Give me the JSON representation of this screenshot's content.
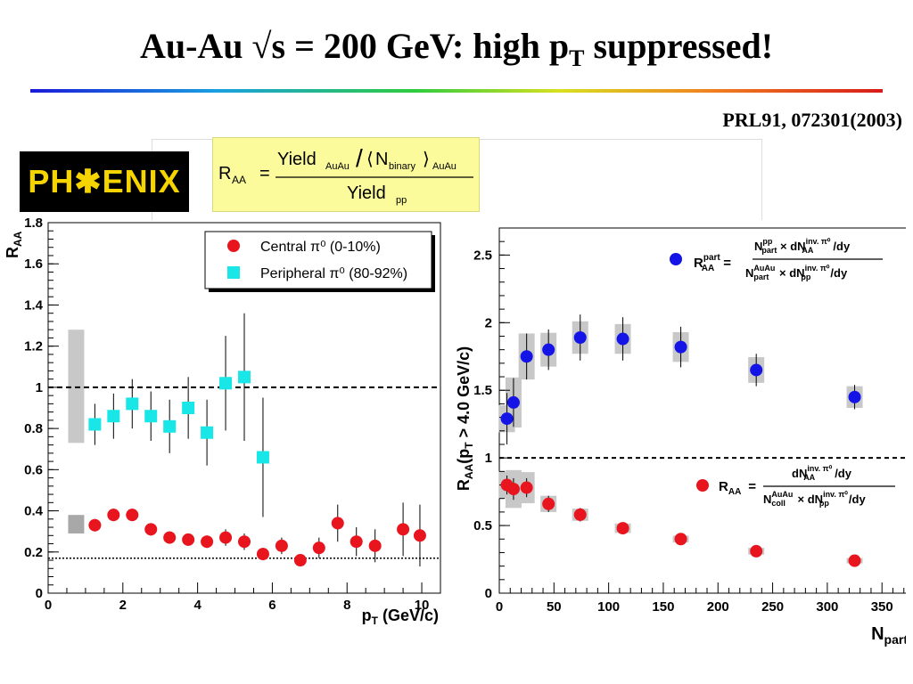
{
  "slide": {
    "title": "Au-Au √s = 200 GeV: high p",
    "title_sub": "T",
    "title_tail": " suppressed!",
    "reference": "PRL91, 072301(2003)",
    "logo_text": "PH✱ENIX",
    "formula": {
      "lhs": "R",
      "lhs_sub": "AA",
      "num_main": "Yield",
      "num_sub": "AuAu",
      "ncoll_main": "N",
      "ncoll_sub": "binary",
      "ncoll_sub2": "AuAu",
      "den_main": "Yield",
      "den_sub": "pp"
    }
  },
  "colors": {
    "central": "#e8141e",
    "peripheral": "#19e6e6",
    "npart_blue": "#1414e6",
    "band": "#c8c8c8"
  },
  "chart_data": [
    {
      "type": "scatter",
      "xlabel": "p",
      "xlabel_sub": "T",
      "xlabel_tail": " (GeV/c)",
      "ylabel": "R",
      "ylabel_sub": "AA",
      "xlim": [
        0,
        10.5
      ],
      "ylim": [
        0,
        1.8
      ],
      "xticks": [
        "0",
        "2",
        "4",
        "6",
        "8",
        "10"
      ],
      "yticks": [
        "0",
        "0.2",
        "0.4",
        "0.6",
        "0.8",
        "1",
        "1.2",
        "1.4",
        "1.6",
        "1.8"
      ],
      "reference_lines": [
        1.0,
        0.17
      ],
      "legend": [
        "Central π⁰ (0-10%)",
        "Peripheral π⁰ (80-92%)"
      ],
      "series": [
        {
          "name": "Central π⁰ (0-10%)",
          "x": [
            1.25,
            1.75,
            2.25,
            2.75,
            3.25,
            3.75,
            4.25,
            4.75,
            5.25,
            5.75,
            6.25,
            6.75,
            7.25,
            7.75,
            8.25,
            8.75,
            9.5,
            9.95
          ],
          "y": [
            0.33,
            0.38,
            0.38,
            0.31,
            0.27,
            0.26,
            0.25,
            0.27,
            0.25,
            0.19,
            0.23,
            0.16,
            0.22,
            0.34,
            0.25,
            0.23,
            0.31,
            0.28
          ],
          "err": [
            0.03,
            0.03,
            0.03,
            0.03,
            0.03,
            0.03,
            0.03,
            0.04,
            0.04,
            0.03,
            0.04,
            0.03,
            0.05,
            0.09,
            0.07,
            0.08,
            0.13,
            0.15
          ]
        },
        {
          "name": "Peripheral π⁰ (80-92%)",
          "x": [
            1.25,
            1.75,
            2.25,
            2.75,
            3.25,
            3.75,
            4.25,
            4.75,
            5.25,
            5.75
          ],
          "y": [
            0.82,
            0.86,
            0.92,
            0.86,
            0.81,
            0.9,
            0.78,
            1.02,
            1.05,
            0.66
          ],
          "err": [
            0.1,
            0.11,
            0.12,
            0.12,
            0.13,
            0.15,
            0.16,
            0.23,
            0.31,
            0.29
          ]
        }
      ],
      "systematic_bands": [
        {
          "x": 0.75,
          "low": 0.73,
          "high": 1.28
        },
        {
          "x": 0.75,
          "low": 0.29,
          "high": 0.38
        }
      ]
    },
    {
      "type": "scatter",
      "xlabel": "N",
      "xlabel_sub": "part",
      "ylabel": "R",
      "ylabel_sub": "AA",
      "ylabel_tail": "(p",
      "ylabel_tail_sub": "T",
      "ylabel_end": " > 4.0 GeV/c)",
      "xlim": [
        0,
        380
      ],
      "ylim": [
        0,
        2.7
      ],
      "xticks": [
        "0",
        "50",
        "100",
        "150",
        "200",
        "250",
        "300",
        "350"
      ],
      "yticks": [
        "0",
        "0.5",
        "1",
        "1.5",
        "2",
        "2.5"
      ],
      "reference_lines": [
        1.0
      ],
      "legend": [
        "R_AA^part",
        "R_AA"
      ],
      "series": [
        {
          "name": "R_AA^part",
          "x": [
            7,
            13,
            25,
            45,
            74,
            113,
            166,
            235,
            325
          ],
          "y": [
            1.29,
            1.41,
            1.75,
            1.8,
            1.89,
            1.88,
            1.82,
            1.65,
            1.45
          ],
          "err": [
            0.19,
            0.18,
            0.17,
            0.15,
            0.17,
            0.16,
            0.15,
            0.12,
            0.09
          ],
          "sys": [
            0.2,
            0.37,
            0.34,
            0.25,
            0.24,
            0.22,
            0.22,
            0.19,
            0.16
          ]
        },
        {
          "name": "R_AA",
          "x": [
            7,
            13,
            25,
            45,
            74,
            113,
            166,
            235,
            325
          ],
          "y": [
            0.8,
            0.77,
            0.78,
            0.66,
            0.58,
            0.48,
            0.4,
            0.31,
            0.24
          ],
          "err": [
            0.07,
            0.08,
            0.07,
            0.06,
            0.05,
            0.03,
            0.03,
            0.02,
            0.02
          ],
          "sys": [
            0.2,
            0.28,
            0.23,
            0.12,
            0.09,
            0.07,
            0.05,
            0.05,
            0.04
          ]
        }
      ]
    }
  ]
}
